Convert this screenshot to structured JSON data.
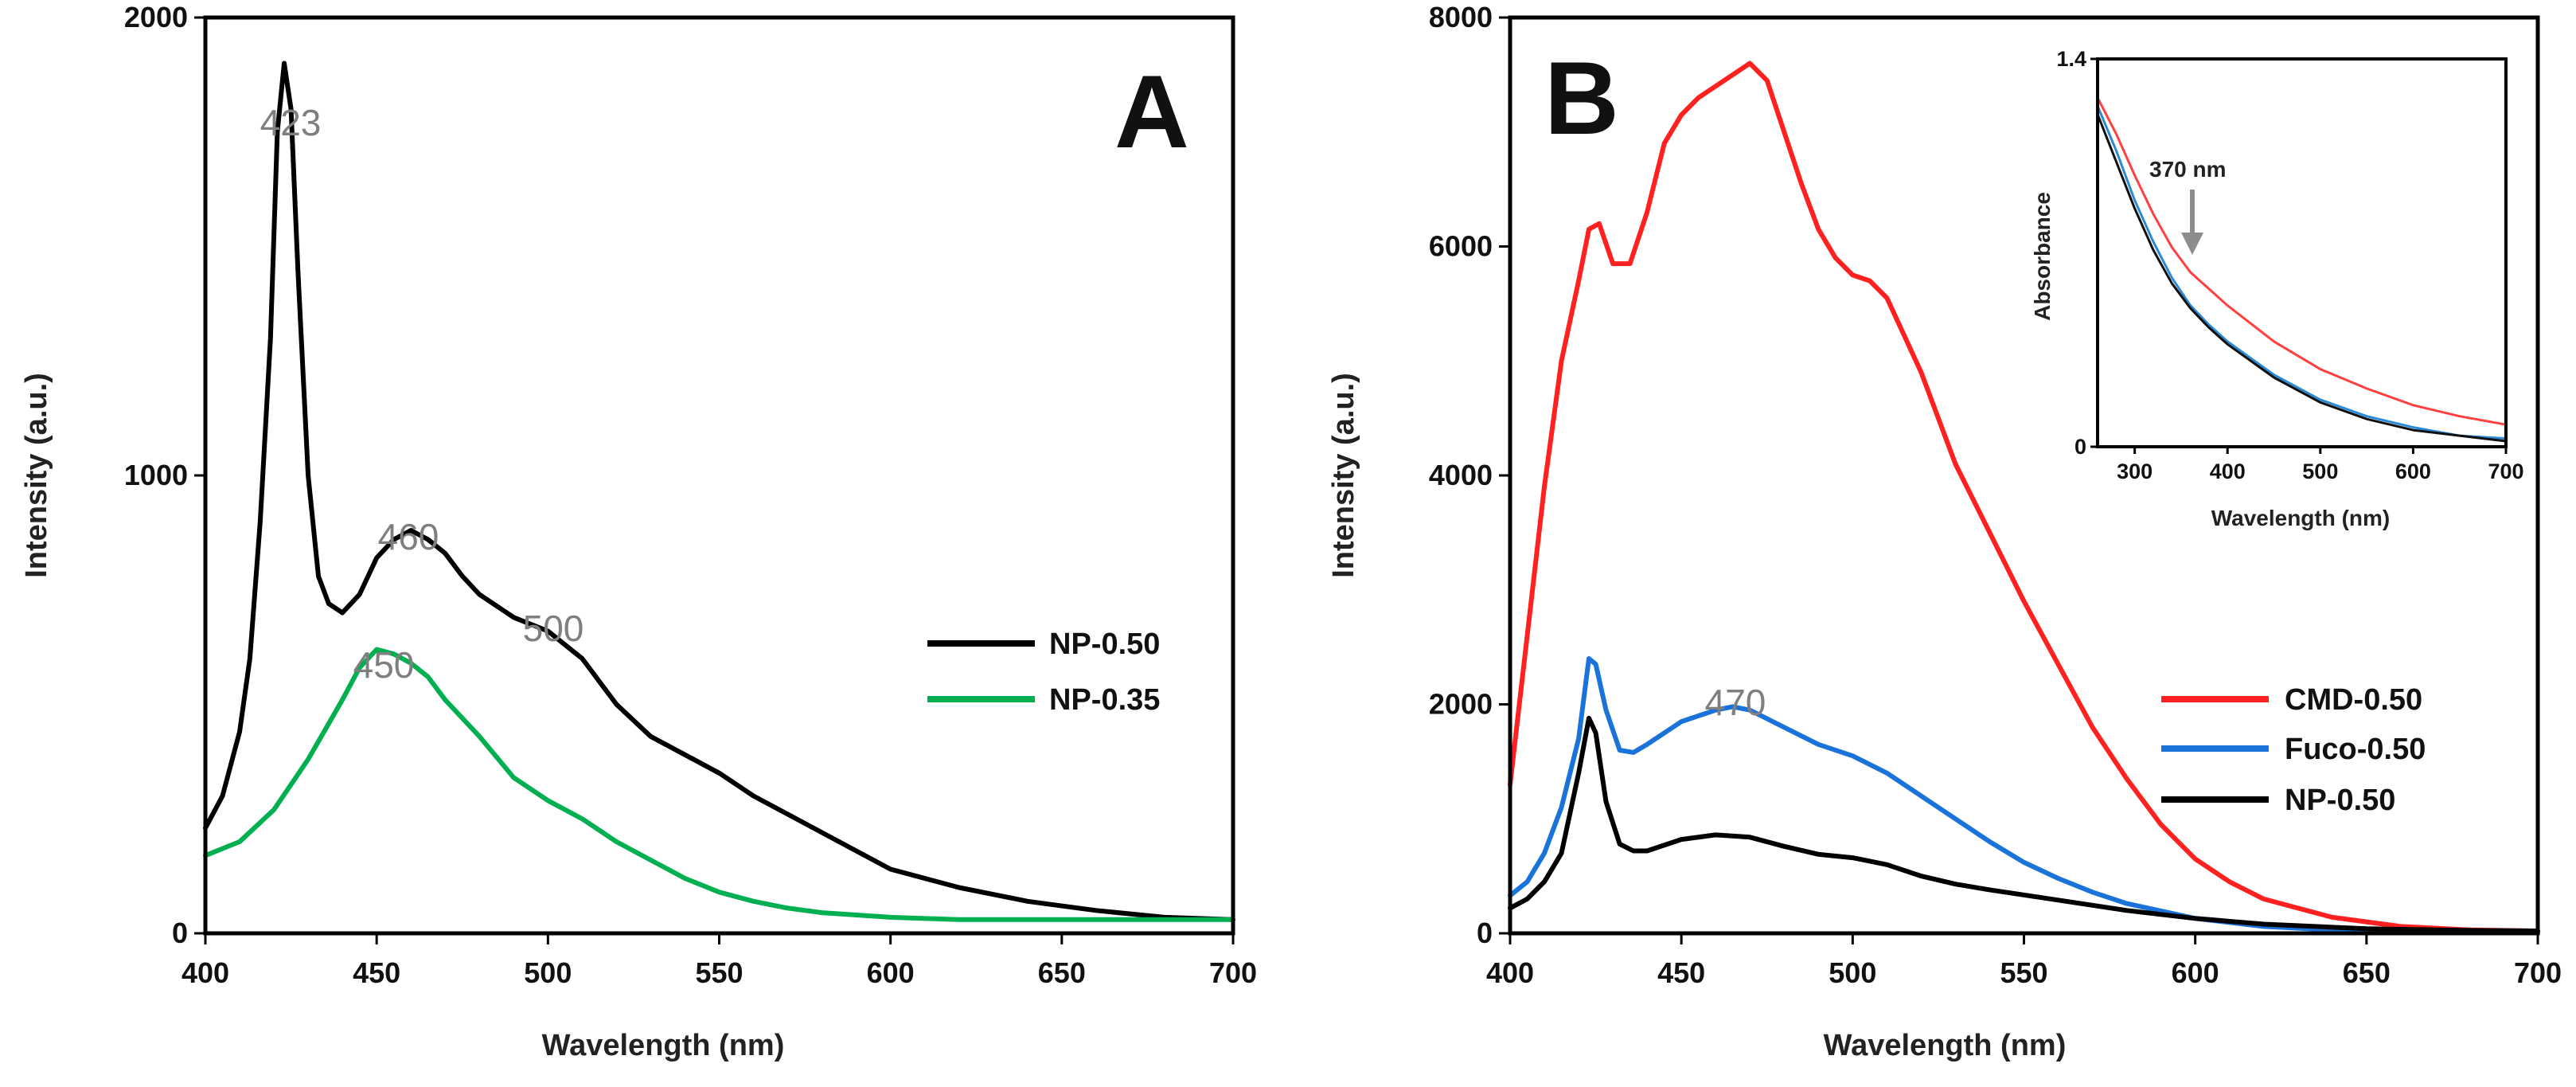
{
  "chart_data": [
    {
      "panel": "A",
      "type": "line",
      "xlabel": "Wavelength (nm)",
      "ylabel": "Intensity (a.u.)",
      "xlim": [
        400,
        700
      ],
      "ylim": [
        0,
        2000
      ],
      "xticks": [
        400,
        450,
        500,
        550,
        600,
        650,
        700
      ],
      "yticks": [
        0,
        1000,
        2000
      ],
      "legend_position": "right-middle",
      "annotations": [
        {
          "text": "423",
          "x": 423,
          "y": 1900
        },
        {
          "text": "460",
          "x": 460,
          "y": 880
        },
        {
          "text": "500",
          "x": 500,
          "y": 660
        },
        {
          "text": "450",
          "x": 450,
          "y": 620
        }
      ],
      "series": [
        {
          "name": "NP-0.50",
          "color": "#000000",
          "x": [
            400,
            405,
            410,
            413,
            416,
            419,
            421,
            423,
            425,
            427,
            430,
            433,
            436,
            440,
            445,
            450,
            455,
            460,
            465,
            470,
            475,
            480,
            490,
            500,
            510,
            520,
            530,
            540,
            550,
            560,
            570,
            580,
            590,
            600,
            620,
            640,
            660,
            680,
            700
          ],
          "y": [
            230,
            300,
            440,
            600,
            900,
            1300,
            1750,
            1900,
            1800,
            1450,
            1000,
            780,
            720,
            700,
            740,
            820,
            860,
            880,
            860,
            830,
            780,
            740,
            690,
            660,
            600,
            500,
            430,
            390,
            350,
            300,
            260,
            220,
            180,
            140,
            100,
            70,
            50,
            35,
            30
          ]
        },
        {
          "name": "NP-0.35",
          "color": "#00b050",
          "x": [
            400,
            410,
            420,
            430,
            440,
            445,
            450,
            455,
            460,
            465,
            470,
            480,
            490,
            500,
            510,
            520,
            530,
            540,
            550,
            560,
            570,
            580,
            600,
            620,
            640,
            660,
            680,
            700
          ],
          "y": [
            170,
            200,
            270,
            380,
            510,
            580,
            620,
            610,
            590,
            560,
            510,
            430,
            340,
            290,
            250,
            200,
            160,
            120,
            90,
            70,
            55,
            45,
            35,
            30,
            30,
            30,
            30,
            30
          ]
        }
      ]
    },
    {
      "panel": "B",
      "type": "line",
      "xlabel": "Wavelength (nm)",
      "ylabel": "Intensity (a.u.)",
      "xlim": [
        400,
        700
      ],
      "ylim": [
        0,
        8000
      ],
      "xticks": [
        400,
        450,
        500,
        550,
        600,
        650,
        700
      ],
      "yticks": [
        0,
        2000,
        4000,
        6000,
        8000
      ],
      "legend_position": "right-lower",
      "annotations": [
        {
          "text": "470",
          "x": 465,
          "y": 2000
        }
      ],
      "series": [
        {
          "name": "CMD-0.50",
          "color": "#ff2020",
          "x": [
            400,
            405,
            410,
            415,
            420,
            423,
            426,
            430,
            435,
            440,
            445,
            450,
            455,
            460,
            465,
            470,
            475,
            480,
            485,
            490,
            495,
            500,
            505,
            510,
            520,
            530,
            540,
            550,
            560,
            570,
            580,
            590,
            600,
            610,
            620,
            640,
            660,
            680,
            700
          ],
          "y": [
            1300,
            2600,
            3900,
            5000,
            5700,
            6150,
            6200,
            5850,
            5850,
            6300,
            6900,
            7150,
            7300,
            7400,
            7500,
            7600,
            7450,
            7000,
            6550,
            6150,
            5900,
            5750,
            5700,
            5550,
            4900,
            4100,
            3500,
            2900,
            2350,
            1800,
            1350,
            950,
            650,
            450,
            300,
            140,
            60,
            30,
            20
          ]
        },
        {
          "name": "Fuco-0.50",
          "color": "#1a73d9",
          "x": [
            400,
            405,
            410,
            415,
            420,
            423,
            425,
            428,
            432,
            436,
            440,
            450,
            460,
            465,
            470,
            480,
            490,
            500,
            510,
            520,
            530,
            540,
            550,
            560,
            570,
            580,
            600,
            620,
            640,
            660,
            680,
            700
          ],
          "y": [
            330,
            450,
            700,
            1100,
            1700,
            2400,
            2350,
            1950,
            1600,
            1580,
            1650,
            1850,
            1950,
            1980,
            1950,
            1800,
            1650,
            1550,
            1400,
            1200,
            1000,
            800,
            620,
            480,
            360,
            260,
            130,
            60,
            30,
            20,
            15,
            10
          ]
        },
        {
          "name": "NP-0.50",
          "color": "#000000",
          "x": [
            400,
            405,
            410,
            415,
            420,
            423,
            425,
            428,
            432,
            436,
            440,
            450,
            460,
            470,
            480,
            490,
            500,
            510,
            520,
            530,
            540,
            560,
            580,
            600,
            620,
            650,
            680,
            700
          ],
          "y": [
            220,
            300,
            450,
            700,
            1400,
            1880,
            1750,
            1150,
            780,
            720,
            720,
            820,
            860,
            840,
            760,
            690,
            660,
            600,
            500,
            430,
            380,
            290,
            200,
            130,
            80,
            40,
            25,
            20
          ]
        }
      ],
      "inset": {
        "type": "line",
        "xlabel": "Wavelength (nm)",
        "ylabel": "Absorbance",
        "xlim": [
          260,
          700
        ],
        "ylim": [
          0,
          1.4
        ],
        "xticks": [
          300,
          400,
          500,
          600,
          700
        ],
        "yticks": [
          0,
          1.4
        ],
        "ytick_labels": [
          "0",
          "1.4"
        ],
        "annotation": {
          "text": "370 nm",
          "x": 370
        },
        "series": [
          {
            "name": "CMD-0.50",
            "color": "#ff4040",
            "x": [
              260,
              280,
              300,
              320,
              340,
              360,
              380,
              400,
              450,
              500,
              550,
              600,
              650,
              700
            ],
            "y": [
              1.26,
              1.13,
              0.98,
              0.84,
              0.72,
              0.63,
              0.57,
              0.51,
              0.38,
              0.28,
              0.21,
              0.15,
              0.11,
              0.08
            ]
          },
          {
            "name": "Fuco-0.50",
            "color": "#2a8ad8",
            "x": [
              260,
              280,
              300,
              320,
              340,
              360,
              380,
              400,
              450,
              500,
              550,
              600,
              650,
              700
            ],
            "y": [
              1.23,
              1.07,
              0.89,
              0.74,
              0.61,
              0.51,
              0.44,
              0.38,
              0.26,
              0.17,
              0.11,
              0.07,
              0.04,
              0.03
            ]
          },
          {
            "name": "NP-0.50",
            "color": "#111111",
            "x": [
              260,
              280,
              300,
              320,
              340,
              360,
              380,
              400,
              450,
              500,
              550,
              600,
              650,
              700
            ],
            "y": [
              1.2,
              1.03,
              0.86,
              0.71,
              0.59,
              0.5,
              0.43,
              0.37,
              0.25,
              0.16,
              0.1,
              0.06,
              0.04,
              0.02
            ]
          }
        ]
      }
    }
  ]
}
